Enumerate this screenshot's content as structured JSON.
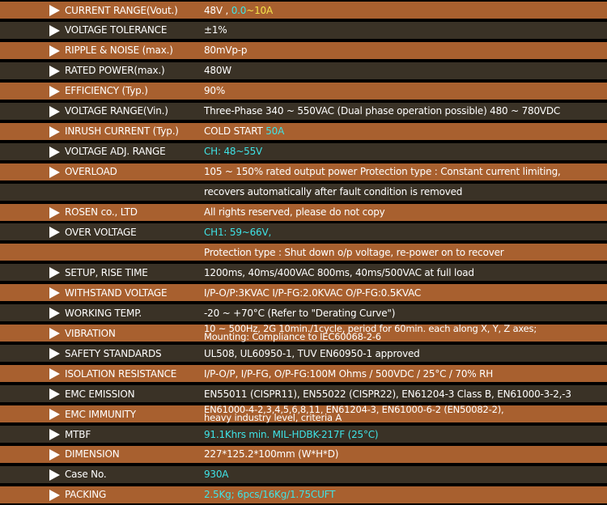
{
  "colors": {
    "orange_row": "#a8602f",
    "dark_row": "#3a3226",
    "cyan": "#3fe3e6",
    "yellow": "#f3e34a"
  },
  "rows": [
    {
      "label": "CURRENT RANGE(Vout.)",
      "value_parts": [
        {
          "text": "48V , ",
          "color": "white"
        },
        {
          "text": "0.0",
          "color": "cyan"
        },
        {
          "text": "~10A",
          "color": "yellow"
        }
      ]
    },
    {
      "label": "VOLTAGE TOLERANCE",
      "value": "±1%"
    },
    {
      "label": "RIPPLE & NOISE (max.)",
      "value": "80mVp-p"
    },
    {
      "label": "RATED POWER(max.)",
      "value": "480W"
    },
    {
      "label": "EFFICIENCY  (Typ.)",
      "value": "90%"
    },
    {
      "label": "VOLTAGE RANGE(Vin.)",
      "value": "Three-Phase 340 ~ 550VAC (Dual phase operation possible) 480 ~ 780VDC"
    },
    {
      "label": "INRUSH CURRENT (Typ.)",
      "value_parts": [
        {
          "text": "COLD START  ",
          "color": "white"
        },
        {
          "text": "50A",
          "color": "cyan"
        }
      ]
    },
    {
      "label": "VOLTAGE ADJ. RANGE",
      "value_parts": [
        {
          "text": "CH: 48~55V",
          "color": "cyan"
        }
      ]
    },
    {
      "label": "OVERLOAD",
      "value": "105 ~ 150% rated output power Protection type : Constant current limiting,"
    },
    {
      "label": "",
      "value": "recovers automatically after fault condition is removed"
    },
    {
      "label": "ROSEN co., LTD",
      "value": "All rights reserved, please do not copy"
    },
    {
      "label": "OVER VOLTAGE",
      "value_parts": [
        {
          "text": "CH1: 59~66V,",
          "color": "cyan"
        }
      ]
    },
    {
      "label": "",
      "value": "Protection type : Shut down o/p voltage, re-power on to recover"
    },
    {
      "label": "SETUP, RISE TIME",
      "value": "1200ms, 40ms/400VAC 800ms, 40ms/500VAC at full load"
    },
    {
      "label": "WITHSTAND VOLTAGE",
      "value": "I/P-O/P:3KVAC I/P-FG:2.0KVAC O/P-FG:0.5KVAC"
    },
    {
      "label": "WORKING TEMP.",
      "value": "-20 ~ +70°C (Refer to \"Derating Curve\")"
    },
    {
      "label": "VIBRATION",
      "value": "10 ~ 500Hz, 2G 10min./1cycle, period for 60min. each along X, Y, Z axes;",
      "value2": "Mounting: Compliance to IEC60068-2-6"
    },
    {
      "label": "SAFETY STANDARDS",
      "value": "UL508, UL60950-1, TUV EN60950-1 approved"
    },
    {
      "label": "ISOLATION RESISTANCE",
      "value": "I/P-O/P, I/P-FG, O/P-FG:100M Ohms / 500VDC / 25°C / 70% RH"
    },
    {
      "label": "EMC EMISSION",
      "value": "EN55011 (CISPR11), EN55022 (CISPR22), EN61204-3 Class B, EN61000-3-2,-3"
    },
    {
      "label": "EMC IMMUNITY",
      "value": "EN61000-4-2,3,4,5,6,8,11, EN61204-3, EN61000-6-2 (EN50082-2),",
      "value2": "heavy industry level, criteria A"
    },
    {
      "label": "MTBF",
      "value_parts": [
        {
          "text": "91.1Khrs min. MIL-HDBK-217F (25°C)",
          "color": "cyan"
        }
      ]
    },
    {
      "label": "DIMENSION",
      "value": "227*125.2*100mm (W*H*D)"
    },
    {
      "label": "Case No.",
      "value_parts": [
        {
          "text": "930A",
          "color": "cyan"
        }
      ]
    },
    {
      "label": "PACKING",
      "value_parts": [
        {
          "text": "2.5Kg; 6pcs/16Kg/1.75CUFT",
          "color": "cyan"
        }
      ]
    }
  ]
}
